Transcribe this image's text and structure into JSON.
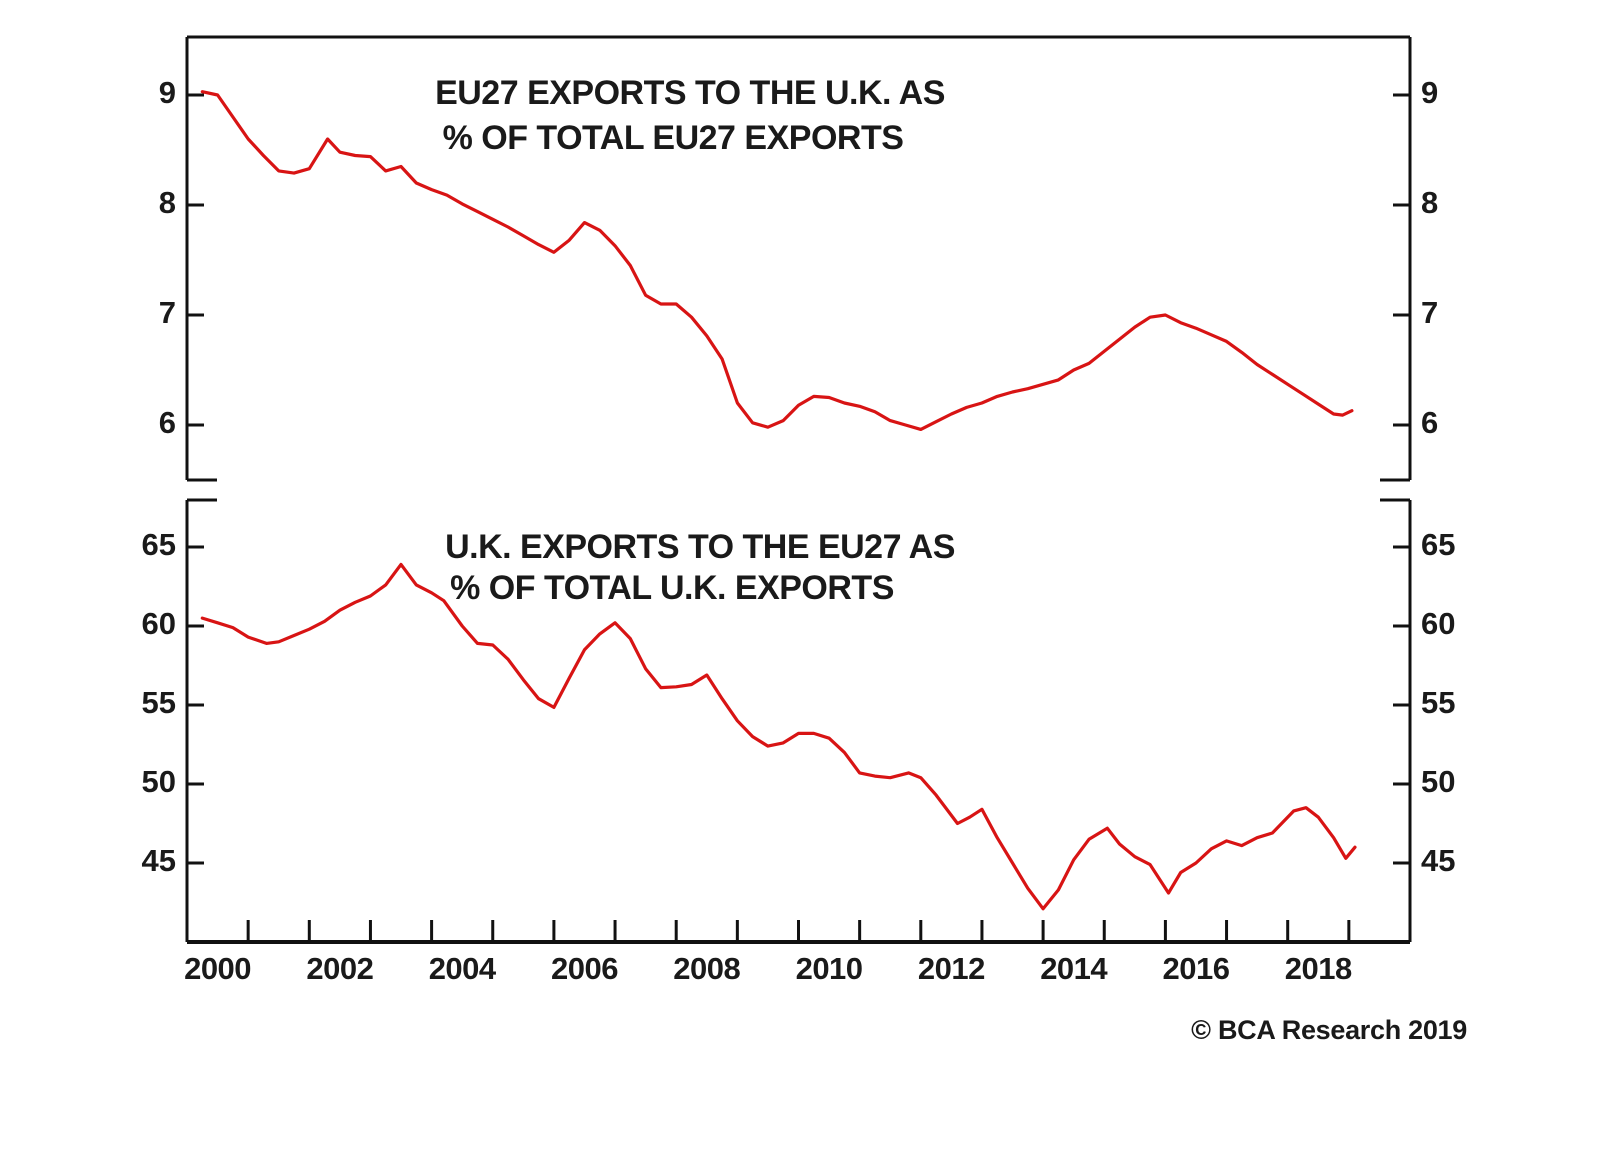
{
  "figure": {
    "source_note": "© BCA Research 2019",
    "line_color": "#d81414",
    "text_color": "#1a1a1a",
    "axis_color": "#111111",
    "background": "#ffffff"
  },
  "x_axis": {
    "xlim": [
      2000,
      2020
    ],
    "tick_years": [
      2001,
      2002,
      2003,
      2004,
      2005,
      2006,
      2007,
      2008,
      2009,
      2010,
      2011,
      2012,
      2013,
      2014,
      2015,
      2016,
      2017,
      2018,
      2019
    ],
    "labels": [
      "2000",
      "2002",
      "2004",
      "2006",
      "2008",
      "2010",
      "2012",
      "2014",
      "2016",
      "2018"
    ],
    "label_years": [
      2000,
      2002,
      2004,
      2006,
      2008,
      2010,
      2012,
      2014,
      2016,
      2018
    ]
  },
  "chart_data": [
    {
      "type": "line",
      "title_line1": "EU27 EXPORTS TO THE U.K. AS",
      "title_line2": "% OF TOTAL EU27 EXPORTS",
      "series_name": "EU27 exports to the U.K. as % of total EU27 exports",
      "yticks": [
        9,
        8,
        7,
        6
      ],
      "ylim": [
        5.51,
        9.53
      ],
      "grid": false,
      "x": [
        2000.25,
        2000.5,
        2000.75,
        2001.0,
        2001.25,
        2001.5,
        2001.75,
        2002.0,
        2002.3,
        2002.5,
        2002.75,
        2003.0,
        2003.25,
        2003.5,
        2003.75,
        2004.0,
        2004.25,
        2004.5,
        2004.75,
        2005.0,
        2005.25,
        2005.5,
        2005.75,
        2006.0,
        2006.25,
        2006.5,
        2006.75,
        2007.0,
        2007.25,
        2007.5,
        2007.75,
        2008.0,
        2008.25,
        2008.5,
        2008.75,
        2009.0,
        2009.25,
        2009.5,
        2009.75,
        2010.0,
        2010.25,
        2010.5,
        2010.75,
        2011.0,
        2011.25,
        2011.5,
        2011.75,
        2012.0,
        2012.25,
        2012.5,
        2012.75,
        2013.0,
        2013.25,
        2013.5,
        2013.75,
        2014.0,
        2014.25,
        2014.5,
        2014.75,
        2015.0,
        2015.25,
        2015.5,
        2015.75,
        2016.0,
        2016.25,
        2016.5,
        2016.75,
        2017.0,
        2017.25,
        2017.5,
        2017.75,
        2018.0,
        2018.25,
        2018.5,
        2018.75,
        2018.9,
        2019.05
      ],
      "values": [
        9.03,
        9.0,
        8.8,
        8.6,
        8.45,
        8.31,
        8.29,
        8.33,
        8.6,
        8.48,
        8.45,
        8.44,
        8.31,
        8.35,
        8.2,
        8.14,
        8.09,
        8.01,
        7.94,
        7.87,
        7.8,
        7.72,
        7.64,
        7.57,
        7.68,
        7.84,
        7.77,
        7.63,
        7.45,
        7.18,
        7.1,
        7.1,
        6.98,
        6.81,
        6.6,
        6.2,
        6.02,
        5.98,
        6.04,
        6.18,
        6.26,
        6.25,
        6.2,
        6.17,
        6.12,
        6.04,
        6.0,
        5.96,
        6.03,
        6.1,
        6.16,
        6.2,
        6.26,
        6.3,
        6.33,
        6.37,
        6.41,
        6.5,
        6.56,
        6.67,
        6.78,
        6.89,
        6.98,
        7.0,
        6.93,
        6.88,
        6.82,
        6.76,
        6.66,
        6.55,
        6.46,
        6.37,
        6.28,
        6.19,
        6.1,
        6.09,
        6.13
      ]
    },
    {
      "type": "line",
      "title_line1": "U.K. EXPORTS TO THE EU27 AS",
      "title_line2": "% OF TOTAL U.K. EXPORTS",
      "series_name": "U.K. exports to the EU27 as % of total U.K. exports",
      "yticks": [
        65,
        60,
        55,
        50,
        45
      ],
      "ylim": [
        39.95,
        67.98
      ],
      "grid": false,
      "x": [
        2000.25,
        2000.5,
        2000.75,
        2001.0,
        2001.3,
        2001.5,
        2001.75,
        2002.0,
        2002.25,
        2002.5,
        2002.75,
        2003.0,
        2003.25,
        2003.5,
        2003.75,
        2004.0,
        2004.2,
        2004.5,
        2004.75,
        2005.0,
        2005.25,
        2005.5,
        2005.75,
        2006.0,
        2006.25,
        2006.5,
        2006.75,
        2007.0,
        2007.25,
        2007.5,
        2007.75,
        2008.0,
        2008.25,
        2008.5,
        2008.75,
        2009.0,
        2009.25,
        2009.5,
        2009.75,
        2010.0,
        2010.25,
        2010.5,
        2010.75,
        2011.0,
        2011.25,
        2011.5,
        2011.8,
        2012.0,
        2012.25,
        2012.6,
        2012.8,
        2013.0,
        2013.25,
        2013.5,
        2013.75,
        2014.0,
        2014.25,
        2014.5,
        2014.75,
        2015.05,
        2015.25,
        2015.5,
        2015.75,
        2016.05,
        2016.25,
        2016.5,
        2016.75,
        2017.0,
        2017.25,
        2017.5,
        2017.75,
        2018.1,
        2018.3,
        2018.5,
        2018.75,
        2018.95,
        2019.1
      ],
      "values": [
        60.5,
        60.2,
        59.9,
        59.3,
        58.9,
        59.0,
        59.4,
        59.8,
        60.3,
        61.0,
        61.5,
        61.9,
        62.6,
        63.9,
        62.6,
        62.1,
        61.6,
        60.0,
        58.9,
        58.8,
        57.9,
        56.6,
        55.4,
        54.85,
        56.7,
        58.5,
        59.5,
        60.2,
        59.2,
        57.3,
        56.1,
        56.15,
        56.3,
        56.9,
        55.4,
        54.0,
        53.0,
        52.4,
        52.6,
        53.2,
        53.2,
        52.9,
        52.0,
        50.7,
        50.5,
        50.4,
        50.7,
        50.4,
        49.3,
        47.5,
        47.9,
        48.4,
        46.6,
        45.0,
        43.4,
        42.1,
        43.3,
        45.2,
        46.5,
        47.2,
        46.2,
        45.4,
        44.9,
        43.1,
        44.4,
        45.0,
        45.9,
        46.4,
        46.1,
        46.6,
        46.9,
        48.3,
        48.5,
        47.9,
        46.6,
        45.3,
        46.0
      ]
    }
  ]
}
